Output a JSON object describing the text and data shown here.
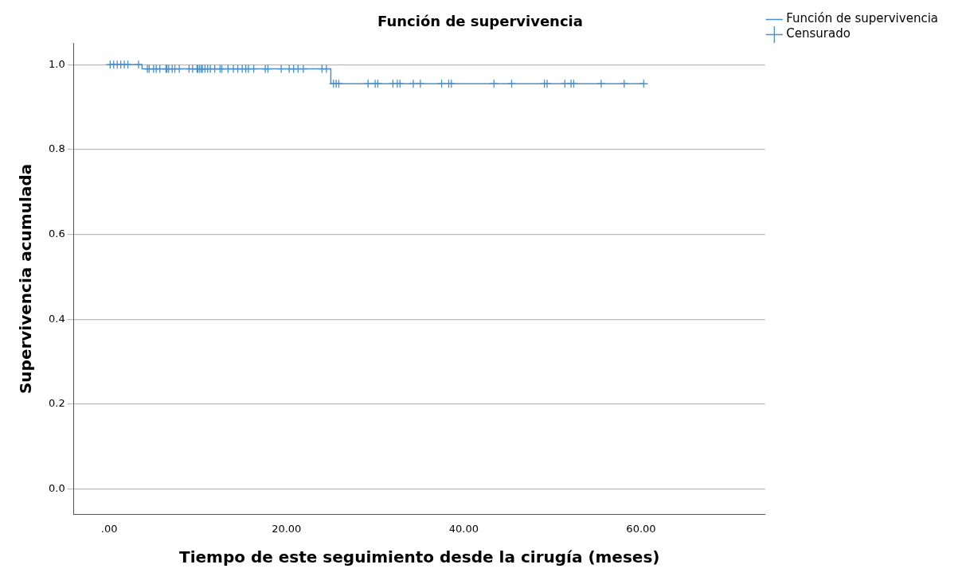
{
  "chart_data": {
    "type": "step",
    "title": "Función de supervivencia",
    "xlabel": "Tiempo de este seguimiento desde la cirugía (meses)",
    "ylabel": "Supervivencia acumulada",
    "series": [
      {
        "name": "Función de supervivencia",
        "color": "#4a8fc9",
        "x": [
          0,
          3.7,
          25.0,
          60.3
        ],
        "values": [
          1.0,
          0.99,
          0.955,
          0.955
        ]
      },
      {
        "name": "Censurado",
        "type": "scatter",
        "marker": "cross",
        "color": "#4a8fc9",
        "x": [
          0.1,
          0.5,
          0.9,
          1.3,
          1.7,
          2.1,
          3.3,
          4.3,
          4.5,
          5.0,
          5.3,
          5.7,
          6.4,
          6.5,
          6.7,
          7.1,
          7.4,
          7.9,
          9.0,
          9.4,
          9.9,
          10.0,
          10.2,
          10.4,
          10.5,
          10.8,
          11.1,
          11.4,
          11.9,
          12.5,
          12.7,
          13.4,
          14.0,
          14.5,
          15.0,
          15.4,
          15.7,
          16.3,
          17.6,
          17.9,
          19.4,
          20.3,
          20.8,
          21.3,
          21.9,
          24.0,
          24.5,
          25.3,
          25.6,
          25.9,
          29.2,
          30.0,
          30.3,
          32.0,
          32.5,
          32.8,
          34.3,
          35.1,
          37.5,
          38.3,
          38.6,
          43.4,
          45.4,
          49.1,
          49.4,
          51.4,
          52.1,
          52.4,
          55.5,
          58.1,
          60.3
        ],
        "values": [
          1.0,
          1.0,
          1.0,
          1.0,
          1.0,
          1.0,
          1.0,
          0.99,
          0.99,
          0.99,
          0.99,
          0.99,
          0.99,
          0.99,
          0.99,
          0.99,
          0.99,
          0.99,
          0.99,
          0.99,
          0.99,
          0.99,
          0.99,
          0.99,
          0.99,
          0.99,
          0.99,
          0.99,
          0.99,
          0.99,
          0.99,
          0.99,
          0.99,
          0.99,
          0.99,
          0.99,
          0.99,
          0.99,
          0.99,
          0.99,
          0.99,
          0.99,
          0.99,
          0.99,
          0.99,
          0.99,
          0.99,
          0.955,
          0.955,
          0.955,
          0.955,
          0.955,
          0.955,
          0.955,
          0.955,
          0.955,
          0.955,
          0.955,
          0.955,
          0.955,
          0.955,
          0.955,
          0.955,
          0.955,
          0.955,
          0.955,
          0.955,
          0.955,
          0.955,
          0.955,
          0.955
        ]
      }
    ],
    "xlim": [
      -4,
      74
    ],
    "xticks": [
      {
        "value": 0,
        "label": ".00"
      },
      {
        "value": 20,
        "label": "20.00"
      },
      {
        "value": 40,
        "label": "40.00"
      },
      {
        "value": 60,
        "label": "60.00"
      }
    ],
    "ylim": [
      -0.06,
      1.05
    ],
    "yticks": [
      {
        "value": 0,
        "label": "0.0"
      },
      {
        "value": 0.2,
        "label": "0.2"
      },
      {
        "value": 0.4,
        "label": "0.4"
      },
      {
        "value": 0.6,
        "label": "0.6"
      },
      {
        "value": 0.8,
        "label": "0.8"
      },
      {
        "value": 1.0,
        "label": "1.0"
      }
    ],
    "grid": "y",
    "legend": "top right"
  }
}
